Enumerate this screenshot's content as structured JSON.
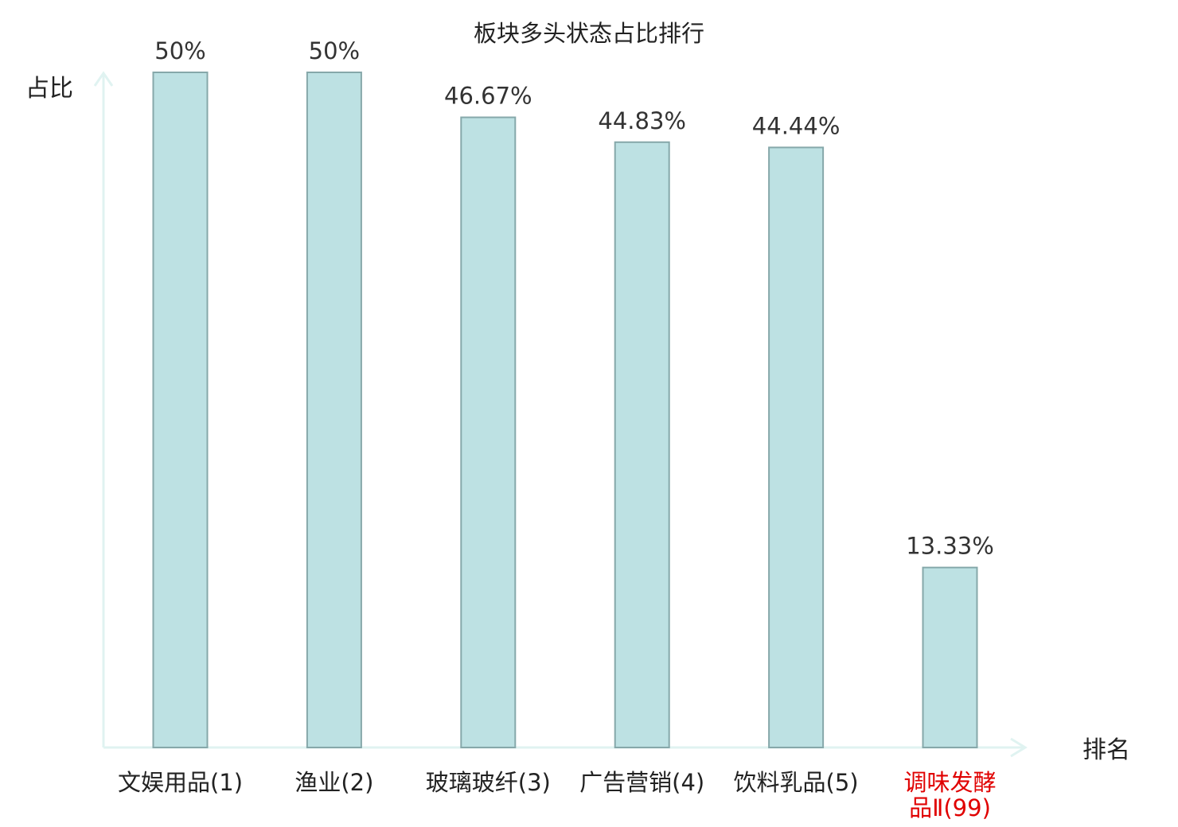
{
  "chart_data": {
    "type": "bar",
    "title": "板块多头状态占比排行",
    "ylabel": "占比",
    "xlabel": "排名",
    "ylim": [
      0,
      50
    ],
    "grid": false,
    "categories": [
      [
        "文娱用品(1)"
      ],
      [
        "渔业(2)"
      ],
      [
        "玻璃玻纤(3)"
      ],
      [
        "广告营销(4)"
      ],
      [
        "饮料乳品(5)"
      ],
      [
        "调味发酵",
        "品Ⅱ(99)"
      ]
    ],
    "values": [
      50,
      50,
      46.67,
      44.83,
      44.44,
      13.33
    ],
    "value_labels": [
      "50%",
      "50%",
      "46.67%",
      "44.83%",
      "44.44%",
      "13.33%"
    ],
    "highlight": [
      false,
      false,
      false,
      false,
      false,
      true
    ]
  },
  "colors": {
    "bar_fill": "#bde1e3",
    "bar_stroke": "#86a8aa",
    "axis": "#e0f3f1",
    "highlight_text": "#e00000",
    "text": "#222222",
    "value_text": "#333333"
  }
}
